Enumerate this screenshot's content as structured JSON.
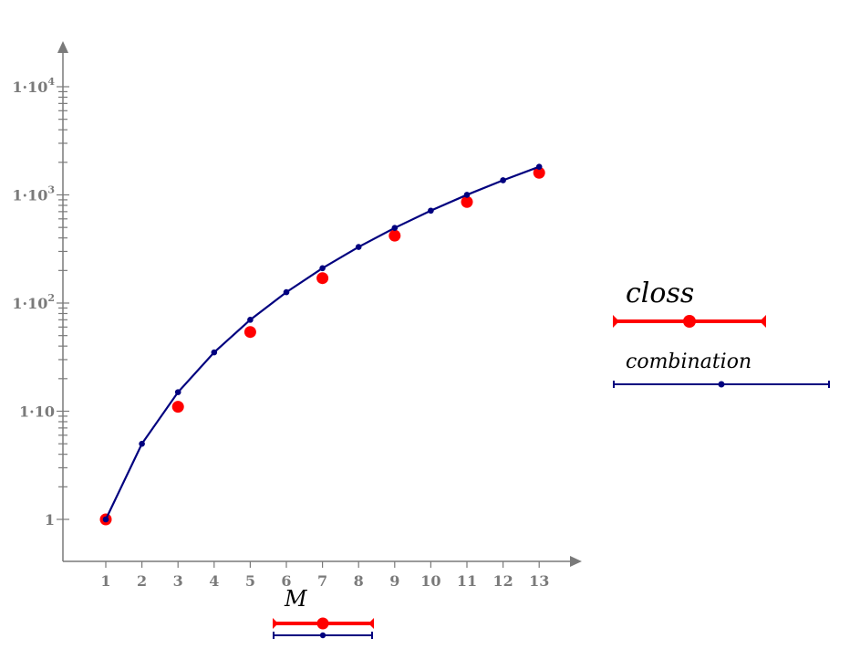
{
  "chart_data": {
    "type": "line",
    "x": [
      1,
      2,
      3,
      4,
      5,
      6,
      7,
      8,
      9,
      10,
      11,
      12,
      13
    ],
    "xticks": [
      "1",
      "2",
      "3",
      "4",
      "5",
      "6",
      "7",
      "8",
      "9",
      "10",
      "11",
      "12",
      "13"
    ],
    "yscale": "log",
    "yticks": [
      {
        "value": 1,
        "base": "1",
        "exp": ""
      },
      {
        "value": 10,
        "base": "1·10",
        "exp": ""
      },
      {
        "value": 100,
        "base": "1·10",
        "exp": "2"
      },
      {
        "value": 1000,
        "base": "1·10",
        "exp": "3"
      },
      {
        "value": 10000,
        "base": "1·10",
        "exp": "4"
      }
    ],
    "xlim": [
      0.2,
      14.2
    ],
    "ylim": [
      0.6,
      30000
    ],
    "xlabel": "M",
    "ylabel": "",
    "grid": false,
    "legend_position": "right",
    "series": [
      {
        "name": "closs",
        "color": "#ff0000",
        "style": "markers",
        "x": [
          1,
          3,
          5,
          7,
          9,
          11,
          13
        ],
        "values": [
          1,
          11,
          54,
          170,
          420,
          860,
          1600
        ]
      },
      {
        "name": "combination",
        "color": "#00007f",
        "style": "line+markers",
        "x": [
          1,
          2,
          3,
          4,
          5,
          6,
          7,
          8,
          9,
          10,
          11,
          12,
          13
        ],
        "values": [
          1,
          5,
          15,
          35,
          70,
          126,
          210,
          330,
          495,
          715,
          1001,
          1365,
          1820
        ]
      }
    ]
  }
}
